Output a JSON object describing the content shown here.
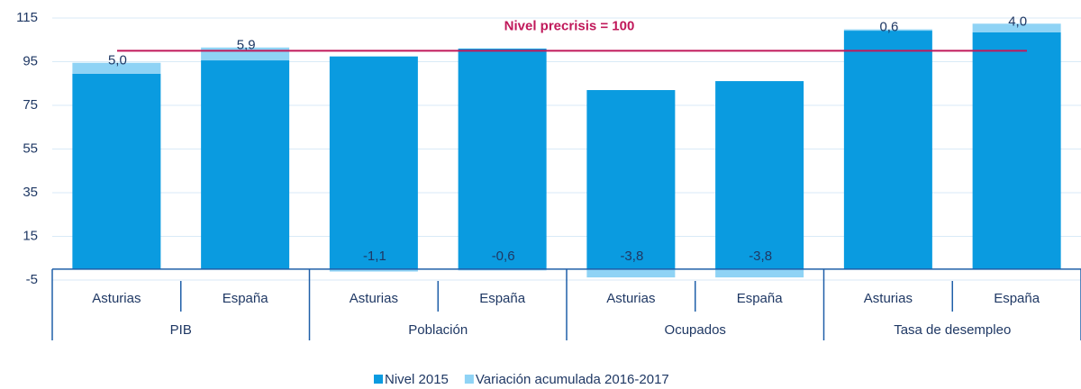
{
  "chart_data": {
    "type": "stacked_bar",
    "categories": [
      "Asturias",
      "España",
      "Asturias",
      "España",
      "Asturias",
      "España",
      "Asturias",
      "España"
    ],
    "groups": [
      "PIB",
      "Población",
      "Ocupados",
      "Tasa de desempleo"
    ],
    "series": [
      {
        "name": "Nivel 2015",
        "color": "#0a9be0",
        "values": [
          89.5,
          95.6,
          97.4,
          101.0,
          82.0,
          86.1,
          109.2,
          108.4
        ]
      },
      {
        "name": "Variación acumulada 2016-2017",
        "color": "#8fd3f5",
        "values": [
          5.0,
          5.9,
          -1.1,
          -0.6,
          -3.8,
          -3.8,
          0.6,
          4.0
        ],
        "value_labels": [
          "5,0",
          "5,9",
          "-1,1",
          "-0,6",
          "-3,8",
          "-3,8",
          "0,6",
          "4,0"
        ]
      }
    ],
    "reference": {
      "value": 100,
      "label": "Nivel precrisis = 100",
      "color": "#c0185a"
    },
    "ylim": [
      -5,
      115
    ],
    "yticks": [
      -5,
      15,
      35,
      55,
      75,
      95,
      115
    ],
    "grid": true,
    "legend": "bottom"
  }
}
